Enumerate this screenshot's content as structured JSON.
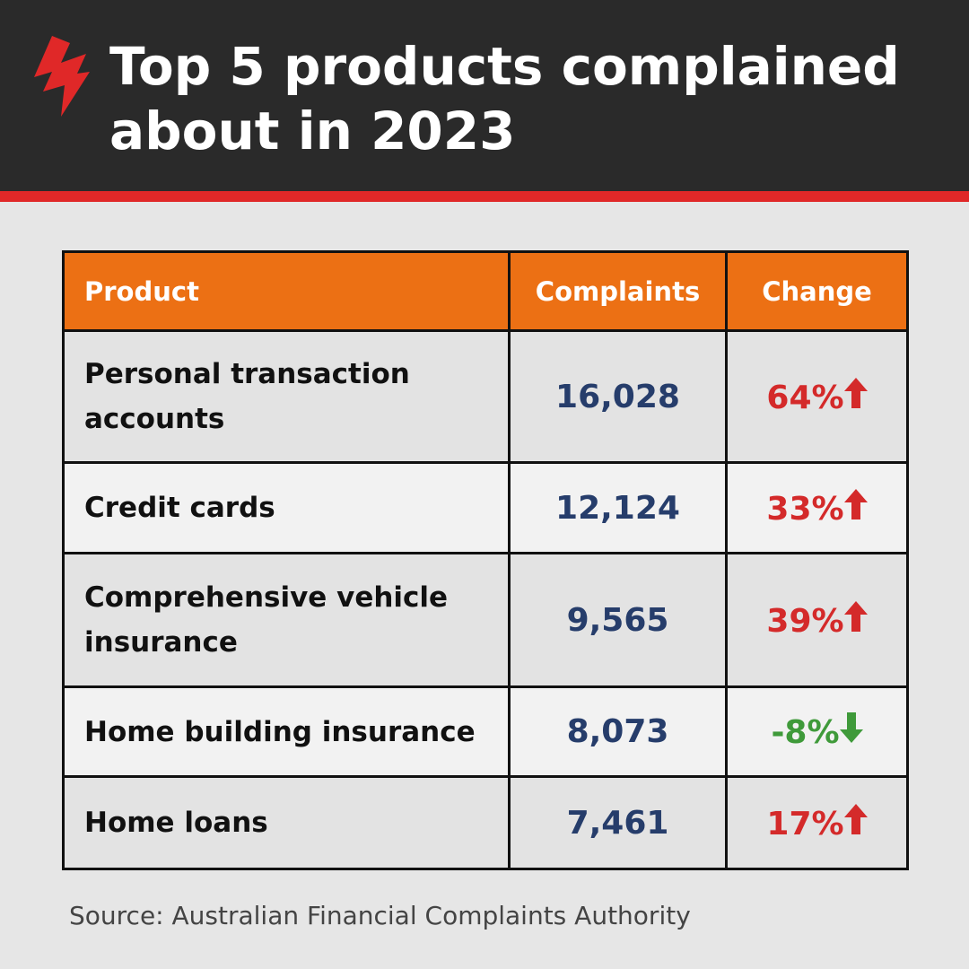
{
  "header": {
    "title": "Top 5 products complained about in 2023"
  },
  "table": {
    "columns": [
      "Product",
      "Complaints",
      "Change"
    ],
    "rows": [
      [
        "Personal transaction accounts",
        "16,028",
        "64%"
      ],
      [
        "Credit cards",
        "12,124",
        "33%"
      ],
      [
        "Comprehensive vehicle insurance",
        "9,565",
        "39%"
      ],
      [
        "Home building insurance",
        "8,073",
        "-8%"
      ],
      [
        "Home loans",
        "7,461",
        "17%"
      ]
    ]
  },
  "source": "Source: Australian Financial Complaints Authority"
}
